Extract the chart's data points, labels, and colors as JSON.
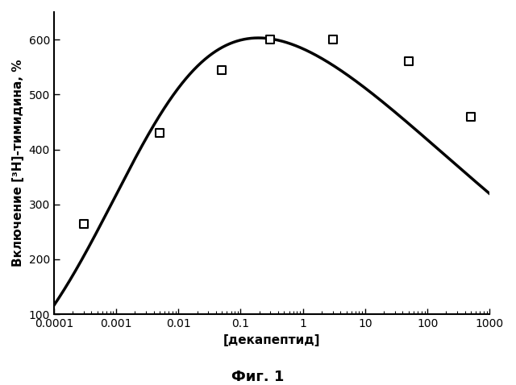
{
  "scatter_x": [
    0.0003,
    0.005,
    0.05,
    0.3,
    3,
    50,
    500
  ],
  "scatter_y": [
    265,
    430,
    545,
    600,
    600,
    560,
    460
  ],
  "xlim": [
    0.0001,
    1000
  ],
  "ylim": [
    100,
    650
  ],
  "yticks": [
    100,
    200,
    300,
    400,
    500,
    600
  ],
  "xtick_labels": [
    "0.0001",
    "0.001",
    "0.01",
    "0.1",
    "1",
    "10",
    "100",
    "1000"
  ],
  "xtick_values": [
    0.0001,
    0.001,
    0.01,
    0.1,
    1,
    10,
    100,
    1000
  ],
  "ylabel": "Включение [³H]-тимидина, %",
  "xlabel": "[декапептид]",
  "caption": "Фиг. 1",
  "line_color": "#000000",
  "scatter_color": "#ffffff",
  "scatter_edge_color": "#000000",
  "background_color": "#ffffff",
  "curve_baseline_y": 100,
  "curve_peak_y": 603,
  "u_rise_mid": -2.8,
  "k_rise": 1.05,
  "u_fall_mid": 1.8,
  "k_fall": 0.38
}
